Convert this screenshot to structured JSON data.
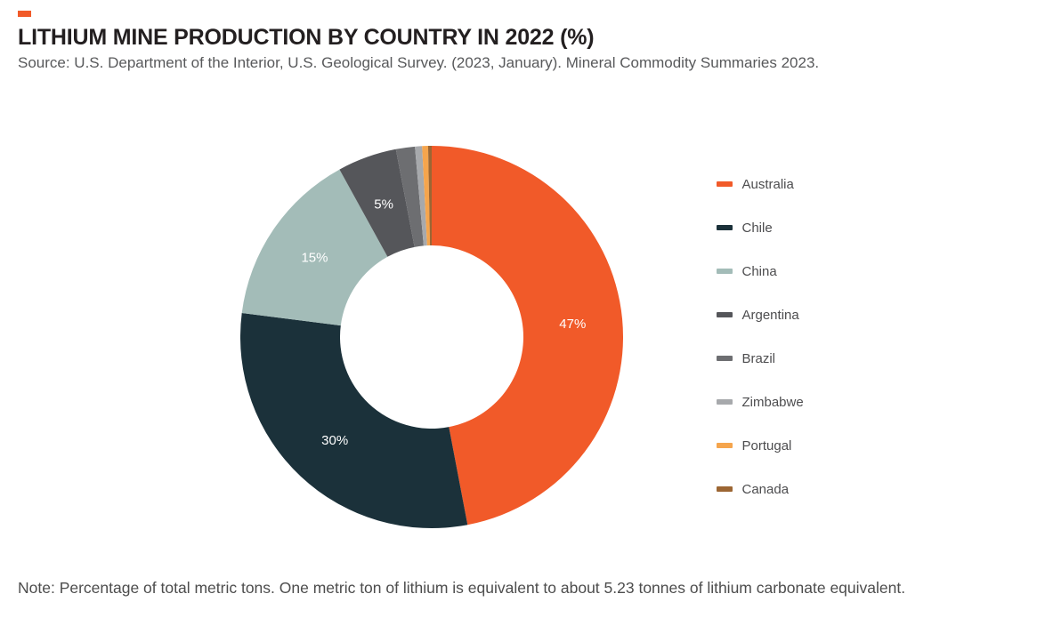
{
  "page": {
    "title": "LITHIUM MINE PRODUCTION BY COUNTRY IN 2022 (%)",
    "source": "Source: U.S. Department of the Interior, U.S. Geological Survey. (2023, January). Mineral Commodity Summaries 2023.",
    "note": "Note: Percentage of total metric tons. One metric ton of lithium is equivalent to about 5.23 tonnes of lithium carbonate equivalent."
  },
  "colors": {
    "accent": "#F15A29",
    "title_text": "#231F20",
    "source_text": "#58595B",
    "note_text": "#4D4D4D",
    "label_text": "#FFFFFF"
  },
  "chart_data": {
    "type": "pie",
    "donut": true,
    "title": "LITHIUM MINE PRODUCTION BY COUNTRY IN 2022 (%)",
    "legend_position": "right",
    "start_angle": "top",
    "direction": "clockwise",
    "categories": [
      "Australia",
      "Chile",
      "China",
      "Argentina",
      "Brazil",
      "Zimbabwe",
      "Portugal",
      "Canada"
    ],
    "values": [
      47,
      30,
      15,
      5,
      1.6,
      0.6,
      0.5,
      0.3
    ],
    "slice_labels": [
      "47%",
      "30%",
      "15%",
      "5%",
      "",
      "",
      "",
      ""
    ],
    "colors": [
      "#F15A29",
      "#1B313A",
      "#A3BCB8",
      "#55565A",
      "#6D6E71",
      "#A7A9AC",
      "#F5A54D",
      "#9C6633"
    ]
  }
}
